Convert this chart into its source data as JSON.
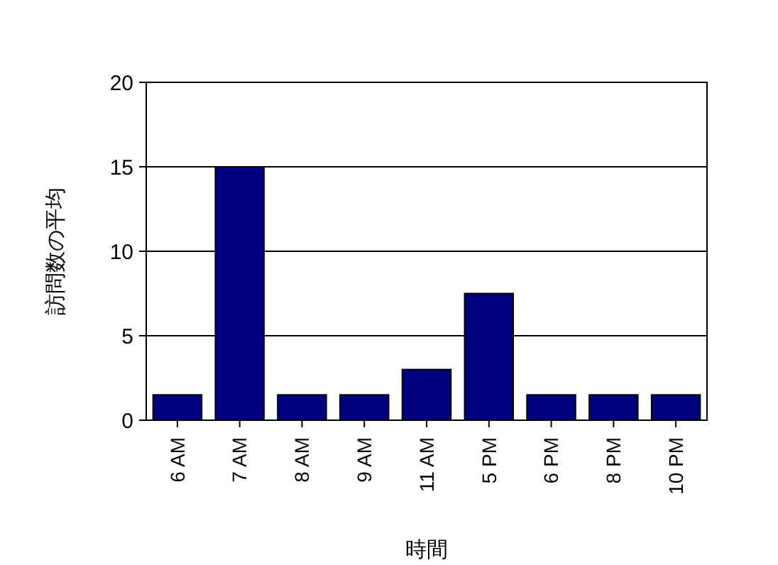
{
  "chart_data": {
    "type": "bar",
    "xlabel": "時間",
    "ylabel": "訪問数の平均",
    "categories": [
      "6 AM",
      "7 AM",
      "8 AM",
      "9 AM",
      "11 AM",
      "5 PM",
      "6 PM",
      "8 PM",
      "10 PM"
    ],
    "values": [
      1.5,
      15,
      1.5,
      1.5,
      3,
      7.5,
      1.5,
      1.5,
      1.5
    ],
    "color": "#000080",
    "ylim": [
      0,
      20
    ],
    "yticks": [
      0,
      5,
      10,
      15,
      20
    ],
    "grid": "y"
  }
}
